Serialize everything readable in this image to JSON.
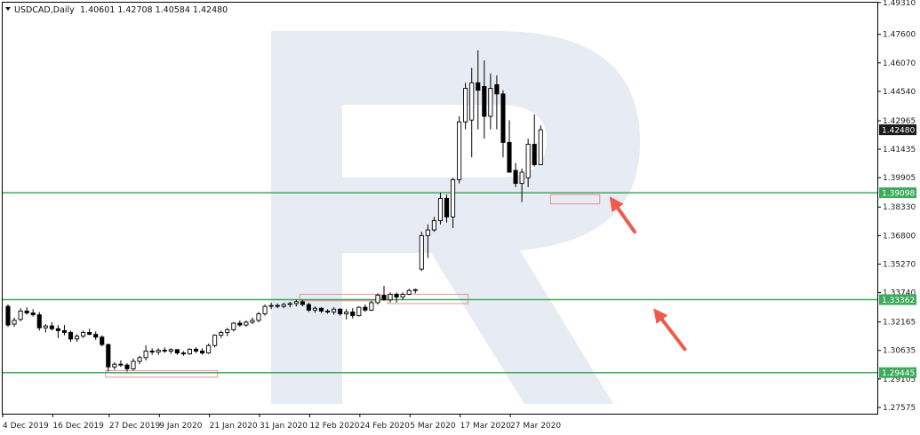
{
  "header": {
    "symbol_label": "USDCAD,Daily",
    "ohlc_text": "1.40601 1.42708 1.40584 1.42480"
  },
  "colors": {
    "bull_body": "#ffffff",
    "bear_body": "#000000",
    "candle_outline": "#000000",
    "level_line": "#3daa5c",
    "zone_box": "#e8909c",
    "arrow": "#ef5a4c",
    "watermark": "#e4e9f2",
    "price_badge": "#1a1a1a",
    "level_badge": "#3daa5c"
  },
  "chart_data": {
    "type": "candlestick",
    "symbol": "USDCAD",
    "timeframe": "Daily",
    "ylim": [
      1.2724,
      1.493
    ],
    "y_ticks": [
      "1.49310",
      "1.47600",
      "1.46070",
      "1.44540",
      "1.42965",
      "1.41435",
      "1.39905",
      "1.38330",
      "1.36800",
      "1.35270",
      "1.33740",
      "1.32165",
      "1.30635",
      "1.29105",
      "1.27575"
    ],
    "x_ticks": [
      {
        "label": "4 Dec 2019",
        "i": 0
      },
      {
        "label": "16 Dec 2019",
        "i": 8
      },
      {
        "label": "27 Dec 2019",
        "i": 17
      },
      {
        "label": "9 Jan 2020",
        "i": 25
      },
      {
        "label": "21 Jan 2020",
        "i": 33
      },
      {
        "label": "31 Jan 2020",
        "i": 41
      },
      {
        "label": "12 Feb 2020",
        "i": 49
      },
      {
        "label": "24 Feb 2020",
        "i": 57
      },
      {
        "label": "5 Mar 2020",
        "i": 65
      },
      {
        "label": "17 Mar 2020",
        "i": 73
      },
      {
        "label": "27 Mar 2020",
        "i": 81
      }
    ],
    "candles": [
      {
        "o": 1.33,
        "h": 1.331,
        "l": 1.319,
        "c": 1.32
      },
      {
        "o": 1.3205,
        "h": 1.324,
        "l": 1.319,
        "c": 1.3225
      },
      {
        "o": 1.323,
        "h": 1.329,
        "l": 1.322,
        "c": 1.3275
      },
      {
        "o": 1.3275,
        "h": 1.3295,
        "l": 1.3255,
        "c": 1.3265
      },
      {
        "o": 1.3265,
        "h": 1.3285,
        "l": 1.3245,
        "c": 1.3255
      },
      {
        "o": 1.3255,
        "h": 1.327,
        "l": 1.317,
        "c": 1.3185
      },
      {
        "o": 1.3185,
        "h": 1.3205,
        "l": 1.316,
        "c": 1.3195
      },
      {
        "o": 1.3195,
        "h": 1.3215,
        "l": 1.317,
        "c": 1.318
      },
      {
        "o": 1.318,
        "h": 1.32,
        "l": 1.313,
        "c": 1.317
      },
      {
        "o": 1.317,
        "h": 1.32,
        "l": 1.3145,
        "c": 1.316
      },
      {
        "o": 1.316,
        "h": 1.317,
        "l": 1.311,
        "c": 1.3125
      },
      {
        "o": 1.3125,
        "h": 1.315,
        "l": 1.311,
        "c": 1.314
      },
      {
        "o": 1.314,
        "h": 1.317,
        "l": 1.313,
        "c": 1.316
      },
      {
        "o": 1.316,
        "h": 1.318,
        "l": 1.3145,
        "c": 1.315
      },
      {
        "o": 1.315,
        "h": 1.3165,
        "l": 1.312,
        "c": 1.3135
      },
      {
        "o": 1.3135,
        "h": 1.3145,
        "l": 1.3085,
        "c": 1.3095
      },
      {
        "o": 1.3095,
        "h": 1.31,
        "l": 1.295,
        "c": 1.2975
      },
      {
        "o": 1.2975,
        "h": 1.3,
        "l": 1.296,
        "c": 1.299
      },
      {
        "o": 1.299,
        "h": 1.301,
        "l": 1.2975,
        "c": 1.2985
      },
      {
        "o": 1.2985,
        "h": 1.2995,
        "l": 1.295,
        "c": 1.2965
      },
      {
        "o": 1.2965,
        "h": 1.302,
        "l": 1.2955,
        "c": 1.3005
      },
      {
        "o": 1.3005,
        "h": 1.3035,
        "l": 1.299,
        "c": 1.3025
      },
      {
        "o": 1.3025,
        "h": 1.309,
        "l": 1.301,
        "c": 1.306
      },
      {
        "o": 1.306,
        "h": 1.3075,
        "l": 1.304,
        "c": 1.3055
      },
      {
        "o": 1.3055,
        "h": 1.3075,
        "l": 1.304,
        "c": 1.3065
      },
      {
        "o": 1.3065,
        "h": 1.308,
        "l": 1.305,
        "c": 1.306
      },
      {
        "o": 1.306,
        "h": 1.3075,
        "l": 1.3045,
        "c": 1.3068
      },
      {
        "o": 1.3068,
        "h": 1.307,
        "l": 1.304,
        "c": 1.305
      },
      {
        "o": 1.305,
        "h": 1.306,
        "l": 1.3035,
        "c": 1.3045
      },
      {
        "o": 1.3045,
        "h": 1.3075,
        "l": 1.304,
        "c": 1.307
      },
      {
        "o": 1.307,
        "h": 1.308,
        "l": 1.305,
        "c": 1.306
      },
      {
        "o": 1.306,
        "h": 1.3075,
        "l": 1.304,
        "c": 1.305
      },
      {
        "o": 1.305,
        "h": 1.31,
        "l": 1.3045,
        "c": 1.309
      },
      {
        "o": 1.309,
        "h": 1.315,
        "l": 1.308,
        "c": 1.3145
      },
      {
        "o": 1.3145,
        "h": 1.317,
        "l": 1.313,
        "c": 1.316
      },
      {
        "o": 1.316,
        "h": 1.3185,
        "l": 1.314,
        "c": 1.3175
      },
      {
        "o": 1.3175,
        "h": 1.3215,
        "l": 1.3165,
        "c": 1.321
      },
      {
        "o": 1.321,
        "h": 1.3225,
        "l": 1.319,
        "c": 1.32
      },
      {
        "o": 1.32,
        "h": 1.3225,
        "l": 1.319,
        "c": 1.3215
      },
      {
        "o": 1.3215,
        "h": 1.324,
        "l": 1.3205,
        "c": 1.3225
      },
      {
        "o": 1.3225,
        "h": 1.327,
        "l": 1.3215,
        "c": 1.326
      },
      {
        "o": 1.326,
        "h": 1.331,
        "l": 1.325,
        "c": 1.33
      },
      {
        "o": 1.33,
        "h": 1.332,
        "l": 1.3285,
        "c": 1.3305
      },
      {
        "o": 1.3305,
        "h": 1.3315,
        "l": 1.329,
        "c": 1.33
      },
      {
        "o": 1.33,
        "h": 1.332,
        "l": 1.329,
        "c": 1.331
      },
      {
        "o": 1.331,
        "h": 1.3325,
        "l": 1.3295,
        "c": 1.3315
      },
      {
        "o": 1.3315,
        "h": 1.3335,
        "l": 1.33,
        "c": 1.3325
      },
      {
        "o": 1.3325,
        "h": 1.3335,
        "l": 1.33,
        "c": 1.331
      },
      {
        "o": 1.331,
        "h": 1.332,
        "l": 1.327,
        "c": 1.328
      },
      {
        "o": 1.328,
        "h": 1.33,
        "l": 1.3265,
        "c": 1.329
      },
      {
        "o": 1.329,
        "h": 1.3295,
        "l": 1.3265,
        "c": 1.3275
      },
      {
        "o": 1.3275,
        "h": 1.3285,
        "l": 1.326,
        "c": 1.327
      },
      {
        "o": 1.327,
        "h": 1.3295,
        "l": 1.3255,
        "c": 1.3285
      },
      {
        "o": 1.3285,
        "h": 1.329,
        "l": 1.325,
        "c": 1.326
      },
      {
        "o": 1.326,
        "h": 1.3285,
        "l": 1.323,
        "c": 1.327
      },
      {
        "o": 1.327,
        "h": 1.329,
        "l": 1.3235,
        "c": 1.325
      },
      {
        "o": 1.325,
        "h": 1.33,
        "l": 1.3245,
        "c": 1.3295
      },
      {
        "o": 1.3295,
        "h": 1.331,
        "l": 1.327,
        "c": 1.328
      },
      {
        "o": 1.328,
        "h": 1.333,
        "l": 1.3275,
        "c": 1.332
      },
      {
        "o": 1.332,
        "h": 1.337,
        "l": 1.331,
        "c": 1.336
      },
      {
        "o": 1.336,
        "h": 1.341,
        "l": 1.333,
        "c": 1.3335
      },
      {
        "o": 1.3335,
        "h": 1.3375,
        "l": 1.332,
        "c": 1.3365
      },
      {
        "o": 1.3365,
        "h": 1.3375,
        "l": 1.332,
        "c": 1.335
      },
      {
        "o": 1.335,
        "h": 1.3375,
        "l": 1.3335,
        "c": 1.3365
      },
      {
        "o": 1.3365,
        "h": 1.3395,
        "l": 1.336,
        "c": 1.3385
      },
      {
        "o": 1.3385,
        "h": 1.3395,
        "l": 1.337,
        "c": 1.339
      },
      {
        "o": 1.35,
        "h": 1.37,
        "l": 1.349,
        "c": 1.368
      },
      {
        "o": 1.368,
        "h": 1.374,
        "l": 1.356,
        "c": 1.371
      },
      {
        "o": 1.371,
        "h": 1.378,
        "l": 1.37,
        "c": 1.376
      },
      {
        "o": 1.376,
        "h": 1.391,
        "l": 1.374,
        "c": 1.388
      },
      {
        "o": 1.388,
        "h": 1.39,
        "l": 1.375,
        "c": 1.378
      },
      {
        "o": 1.378,
        "h": 1.399,
        "l": 1.372,
        "c": 1.398
      },
      {
        "o": 1.398,
        "h": 1.432,
        "l": 1.396,
        "c": 1.429
      },
      {
        "o": 1.429,
        "h": 1.45,
        "l": 1.425,
        "c": 1.447
      },
      {
        "o": 1.43,
        "h": 1.458,
        "l": 1.41,
        "c": 1.45
      },
      {
        "o": 1.45,
        "h": 1.4675,
        "l": 1.425,
        "c": 1.446
      },
      {
        "o": 1.448,
        "h": 1.462,
        "l": 1.42,
        "c": 1.432
      },
      {
        "o": 1.432,
        "h": 1.455,
        "l": 1.425,
        "c": 1.447
      },
      {
        "o": 1.449,
        "h": 1.454,
        "l": 1.425,
        "c": 1.444
      },
      {
        "o": 1.444,
        "h": 1.446,
        "l": 1.41,
        "c": 1.418
      },
      {
        "o": 1.418,
        "h": 1.43,
        "l": 1.403,
        "c": 1.402
      },
      {
        "o": 1.403,
        "h": 1.407,
        "l": 1.394,
        "c": 1.396
      },
      {
        "o": 1.396,
        "h": 1.404,
        "l": 1.386,
        "c": 1.402
      },
      {
        "o": 1.399,
        "h": 1.42,
        "l": 1.394,
        "c": 1.417
      },
      {
        "o": 1.417,
        "h": 1.433,
        "l": 1.405,
        "c": 1.406
      },
      {
        "o": 1.406,
        "h": 1.4271,
        "l": 1.4058,
        "c": 1.4248
      }
    ],
    "levels": [
      {
        "value": 1.39098,
        "label": "1.39098"
      },
      {
        "value": 1.33362,
        "label": "1.33362"
      },
      {
        "value": 1.29445,
        "label": "1.29445"
      }
    ],
    "current_price": {
      "value": 1.4248,
      "label": "1.42480"
    },
    "zones": [
      {
        "i0": 16,
        "i1": 33,
        "y_top": 1.2955,
        "y_bot": 1.292
      },
      {
        "i0": 47,
        "i1": 59,
        "y_top": 1.3365,
        "y_bot": 1.333
      },
      {
        "i0": 61,
        "i1": 73,
        "y_top": 1.3365,
        "y_bot": 1.3315
      },
      {
        "i0": 87,
        "i1": 94,
        "y_top": 1.39,
        "y_bot": 1.385
      }
    ],
    "arrows": [
      {
        "from": {
          "i": 100,
          "price": 1.37
        },
        "to": {
          "i": 96,
          "price": 1.389
        }
      },
      {
        "from": {
          "i": 108,
          "price": 1.307
        },
        "to": {
          "i": 103,
          "price": 1.329
        }
      }
    ]
  }
}
